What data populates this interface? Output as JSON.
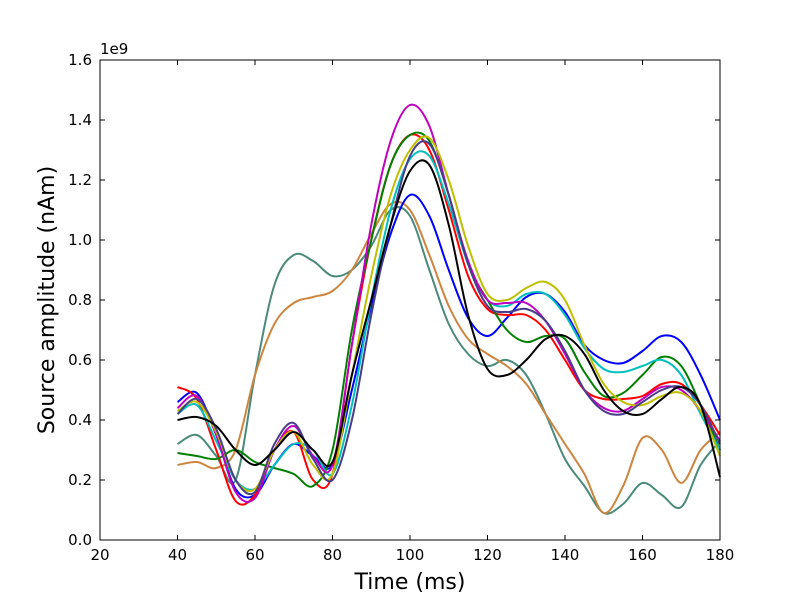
{
  "chart_data": {
    "type": "line",
    "xlabel": "Time (ms)",
    "ylabel": "Source amplitude (nAm)",
    "y_offset_label": "1e9",
    "x": [
      40,
      45,
      50,
      55,
      60,
      65,
      70,
      75,
      80,
      85,
      90,
      95,
      100,
      105,
      110,
      115,
      120,
      125,
      130,
      135,
      140,
      145,
      150,
      155,
      160,
      165,
      170,
      175,
      180
    ],
    "series": [
      {
        "color": "#4a8a7a",
        "values": [
          0.32,
          0.35,
          0.28,
          0.2,
          0.55,
          0.85,
          0.95,
          0.93,
          0.88,
          0.9,
          0.98,
          1.1,
          1.08,
          0.9,
          0.72,
          0.62,
          0.58,
          0.6,
          0.55,
          0.42,
          0.27,
          0.18,
          0.09,
          0.12,
          0.19,
          0.15,
          0.11,
          0.25,
          0.33
        ]
      },
      {
        "color": "#cd853f",
        "values": [
          0.25,
          0.26,
          0.24,
          0.3,
          0.55,
          0.72,
          0.79,
          0.81,
          0.83,
          0.9,
          1.02,
          1.12,
          1.1,
          0.95,
          0.78,
          0.67,
          0.62,
          0.58,
          0.52,
          0.42,
          0.32,
          0.22,
          0.09,
          0.18,
          0.34,
          0.3,
          0.19,
          0.3,
          0.36
        ]
      },
      {
        "color": "#0000ff",
        "values": [
          0.46,
          0.49,
          0.35,
          0.17,
          0.15,
          0.25,
          0.32,
          0.28,
          0.25,
          0.5,
          0.78,
          1.02,
          1.15,
          1.08,
          0.9,
          0.74,
          0.68,
          0.74,
          0.81,
          0.82,
          0.76,
          0.65,
          0.6,
          0.59,
          0.63,
          0.68,
          0.66,
          0.55,
          0.4
        ]
      },
      {
        "color": "#ff0000",
        "values": [
          0.51,
          0.47,
          0.3,
          0.13,
          0.15,
          0.3,
          0.36,
          0.2,
          0.22,
          0.65,
          1.0,
          1.25,
          1.35,
          1.3,
          1.1,
          0.88,
          0.77,
          0.75,
          0.75,
          0.7,
          0.6,
          0.5,
          0.47,
          0.47,
          0.48,
          0.52,
          0.52,
          0.45,
          0.35
        ]
      },
      {
        "color": "#008000",
        "values": [
          0.29,
          0.28,
          0.27,
          0.3,
          0.26,
          0.24,
          0.22,
          0.18,
          0.3,
          0.7,
          1.0,
          1.25,
          1.35,
          1.33,
          1.15,
          0.92,
          0.8,
          0.7,
          0.66,
          0.68,
          0.67,
          0.56,
          0.48,
          0.49,
          0.55,
          0.61,
          0.58,
          0.45,
          0.3
        ]
      },
      {
        "color": "#00bfbf",
        "values": [
          0.42,
          0.45,
          0.33,
          0.2,
          0.17,
          0.25,
          0.32,
          0.3,
          0.22,
          0.45,
          0.8,
          1.1,
          1.27,
          1.28,
          1.12,
          0.92,
          0.8,
          0.78,
          0.82,
          0.82,
          0.75,
          0.64,
          0.57,
          0.56,
          0.58,
          0.6,
          0.55,
          0.42,
          0.3
        ]
      },
      {
        "color": "#bf00bf",
        "values": [
          0.44,
          0.48,
          0.35,
          0.16,
          0.14,
          0.3,
          0.38,
          0.28,
          0.25,
          0.65,
          1.05,
          1.33,
          1.45,
          1.38,
          1.15,
          0.93,
          0.8,
          0.79,
          0.79,
          0.73,
          0.62,
          0.5,
          0.44,
          0.43,
          0.47,
          0.51,
          0.5,
          0.43,
          0.33
        ]
      },
      {
        "color": "#bfbf00",
        "values": [
          0.43,
          0.46,
          0.36,
          0.2,
          0.17,
          0.3,
          0.36,
          0.25,
          0.22,
          0.55,
          0.88,
          1.15,
          1.3,
          1.34,
          1.2,
          0.98,
          0.82,
          0.8,
          0.84,
          0.86,
          0.8,
          0.65,
          0.52,
          0.46,
          0.45,
          0.48,
          0.49,
          0.43,
          0.28
        ]
      },
      {
        "color": "#483d8b",
        "values": [
          0.42,
          0.47,
          0.37,
          0.2,
          0.16,
          0.32,
          0.39,
          0.27,
          0.2,
          0.4,
          0.75,
          1.05,
          1.28,
          1.32,
          1.15,
          0.92,
          0.78,
          0.76,
          0.77,
          0.73,
          0.63,
          0.5,
          0.43,
          0.42,
          0.46,
          0.5,
          0.51,
          0.45,
          0.32
        ]
      },
      {
        "color": "#000000",
        "values": [
          0.4,
          0.41,
          0.38,
          0.3,
          0.25,
          0.3,
          0.36,
          0.3,
          0.26,
          0.55,
          0.8,
          1.05,
          1.23,
          1.25,
          1.05,
          0.75,
          0.57,
          0.55,
          0.6,
          0.67,
          0.68,
          0.62,
          0.5,
          0.43,
          0.42,
          0.47,
          0.51,
          0.45,
          0.21
        ]
      }
    ],
    "xlim": [
      20,
      180
    ],
    "xticks": [
      20,
      40,
      60,
      80,
      100,
      120,
      140,
      160,
      180
    ],
    "ylim": [
      0,
      1.6
    ],
    "yticks": [
      {
        "value": 0,
        "label": "0.0"
      },
      0.2,
      0.4,
      0.6,
      0.8,
      {
        "value": 1,
        "label": "1.0"
      },
      1.2,
      1.4,
      1.6
    ],
    "grid": false
  }
}
